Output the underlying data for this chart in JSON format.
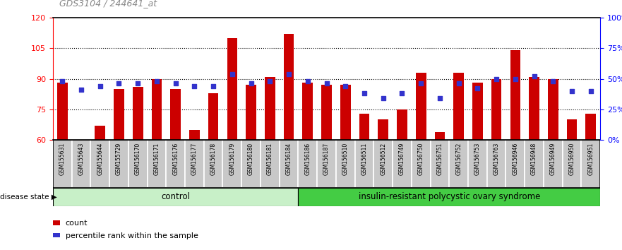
{
  "title": "GDS3104 / 244641_at",
  "samples": [
    "GSM155631",
    "GSM155643",
    "GSM155644",
    "GSM155729",
    "GSM156170",
    "GSM156171",
    "GSM156176",
    "GSM156177",
    "GSM156178",
    "GSM156179",
    "GSM156180",
    "GSM156181",
    "GSM156184",
    "GSM156186",
    "GSM156187",
    "GSM156510",
    "GSM156511",
    "GSM156512",
    "GSM156749",
    "GSM156750",
    "GSM156751",
    "GSM156752",
    "GSM156753",
    "GSM156763",
    "GSM156946",
    "GSM156948",
    "GSM156949",
    "GSM156950",
    "GSM156951"
  ],
  "bar_values": [
    88,
    60,
    67,
    85,
    86,
    90,
    85,
    65,
    83,
    110,
    87,
    91,
    112,
    88,
    87,
    87,
    73,
    70,
    75,
    93,
    64,
    93,
    88,
    90,
    104,
    91,
    90,
    70,
    73
  ],
  "dot_values_pct": [
    48,
    41,
    44,
    46,
    46,
    48,
    46,
    44,
    44,
    54,
    46,
    48,
    54,
    48,
    46,
    44,
    38,
    34,
    38,
    46,
    34,
    46,
    42,
    50,
    50,
    52,
    48,
    40,
    40
  ],
  "control_count": 13,
  "ylim_left": [
    60,
    120
  ],
  "ylim_right": [
    0,
    100
  ],
  "yticks_left": [
    60,
    75,
    90,
    105,
    120
  ],
  "yticks_right": [
    0,
    25,
    50,
    75,
    100
  ],
  "ytick_labels_right": [
    "0%",
    "25%",
    "50%",
    "75%",
    "100%"
  ],
  "bar_color": "#CC0000",
  "dot_color": "#3333CC",
  "label_bg_color": "#C8C8C8",
  "label_border_color": "#FFFFFF",
  "control_color": "#C8F0C8",
  "disease_color": "#44CC44",
  "title_color": "#888888",
  "legend_bar_label": "count",
  "legend_dot_label": "percentile rank within the sample",
  "control_label": "control",
  "disease_label": "insulin-resistant polycystic ovary syndrome",
  "disease_state_label": "disease state"
}
